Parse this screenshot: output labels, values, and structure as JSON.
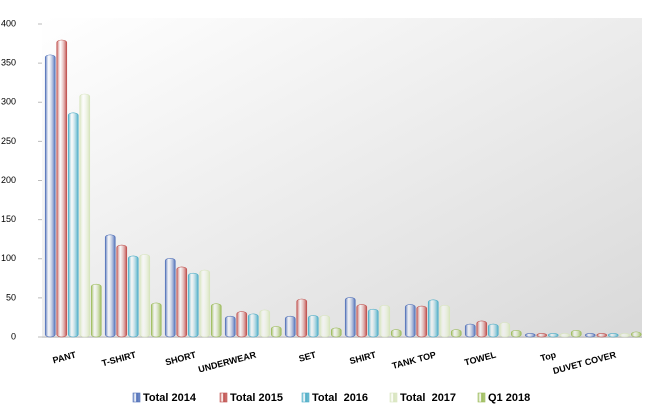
{
  "chart_data": {
    "type": "bar",
    "categories": [
      "PANT",
      "T-SHIRT",
      "SHORT",
      "UNDERWEAR",
      "SET",
      "SHIRT",
      "TANK TOP",
      "TOWEL",
      "Top",
      "DUVET COVER"
    ],
    "series": [
      {
        "name": "Total 2014",
        "color": "#4f6fb8",
        "values": [
          358,
          128,
          98,
          24,
          24,
          48,
          39,
          14,
          2,
          2
        ]
      },
      {
        "name": "Total 2015",
        "color": "#c0504d",
        "values": [
          377,
          115,
          87,
          30,
          46,
          39,
          37,
          18,
          2,
          2
        ]
      },
      {
        "name": "Total  2016",
        "color": "#4bacc6",
        "values": [
          284,
          101,
          79,
          27,
          25,
          33,
          45,
          14,
          2,
          2
        ]
      },
      {
        "name": "Total  2017",
        "color": "#d7e4bd",
        "values": [
          308,
          103,
          83,
          32,
          25,
          38,
          38,
          16,
          2,
          2
        ]
      },
      {
        "name": "Q1 2018",
        "color": "#9bbb59",
        "values": [
          65,
          41,
          40,
          11,
          9,
          7,
          7,
          6,
          6,
          4
        ]
      }
    ],
    "ylim": [
      0,
      400
    ],
    "yticks": [
      0,
      50,
      100,
      150,
      200,
      250,
      300,
      350,
      400
    ],
    "grid": false
  }
}
